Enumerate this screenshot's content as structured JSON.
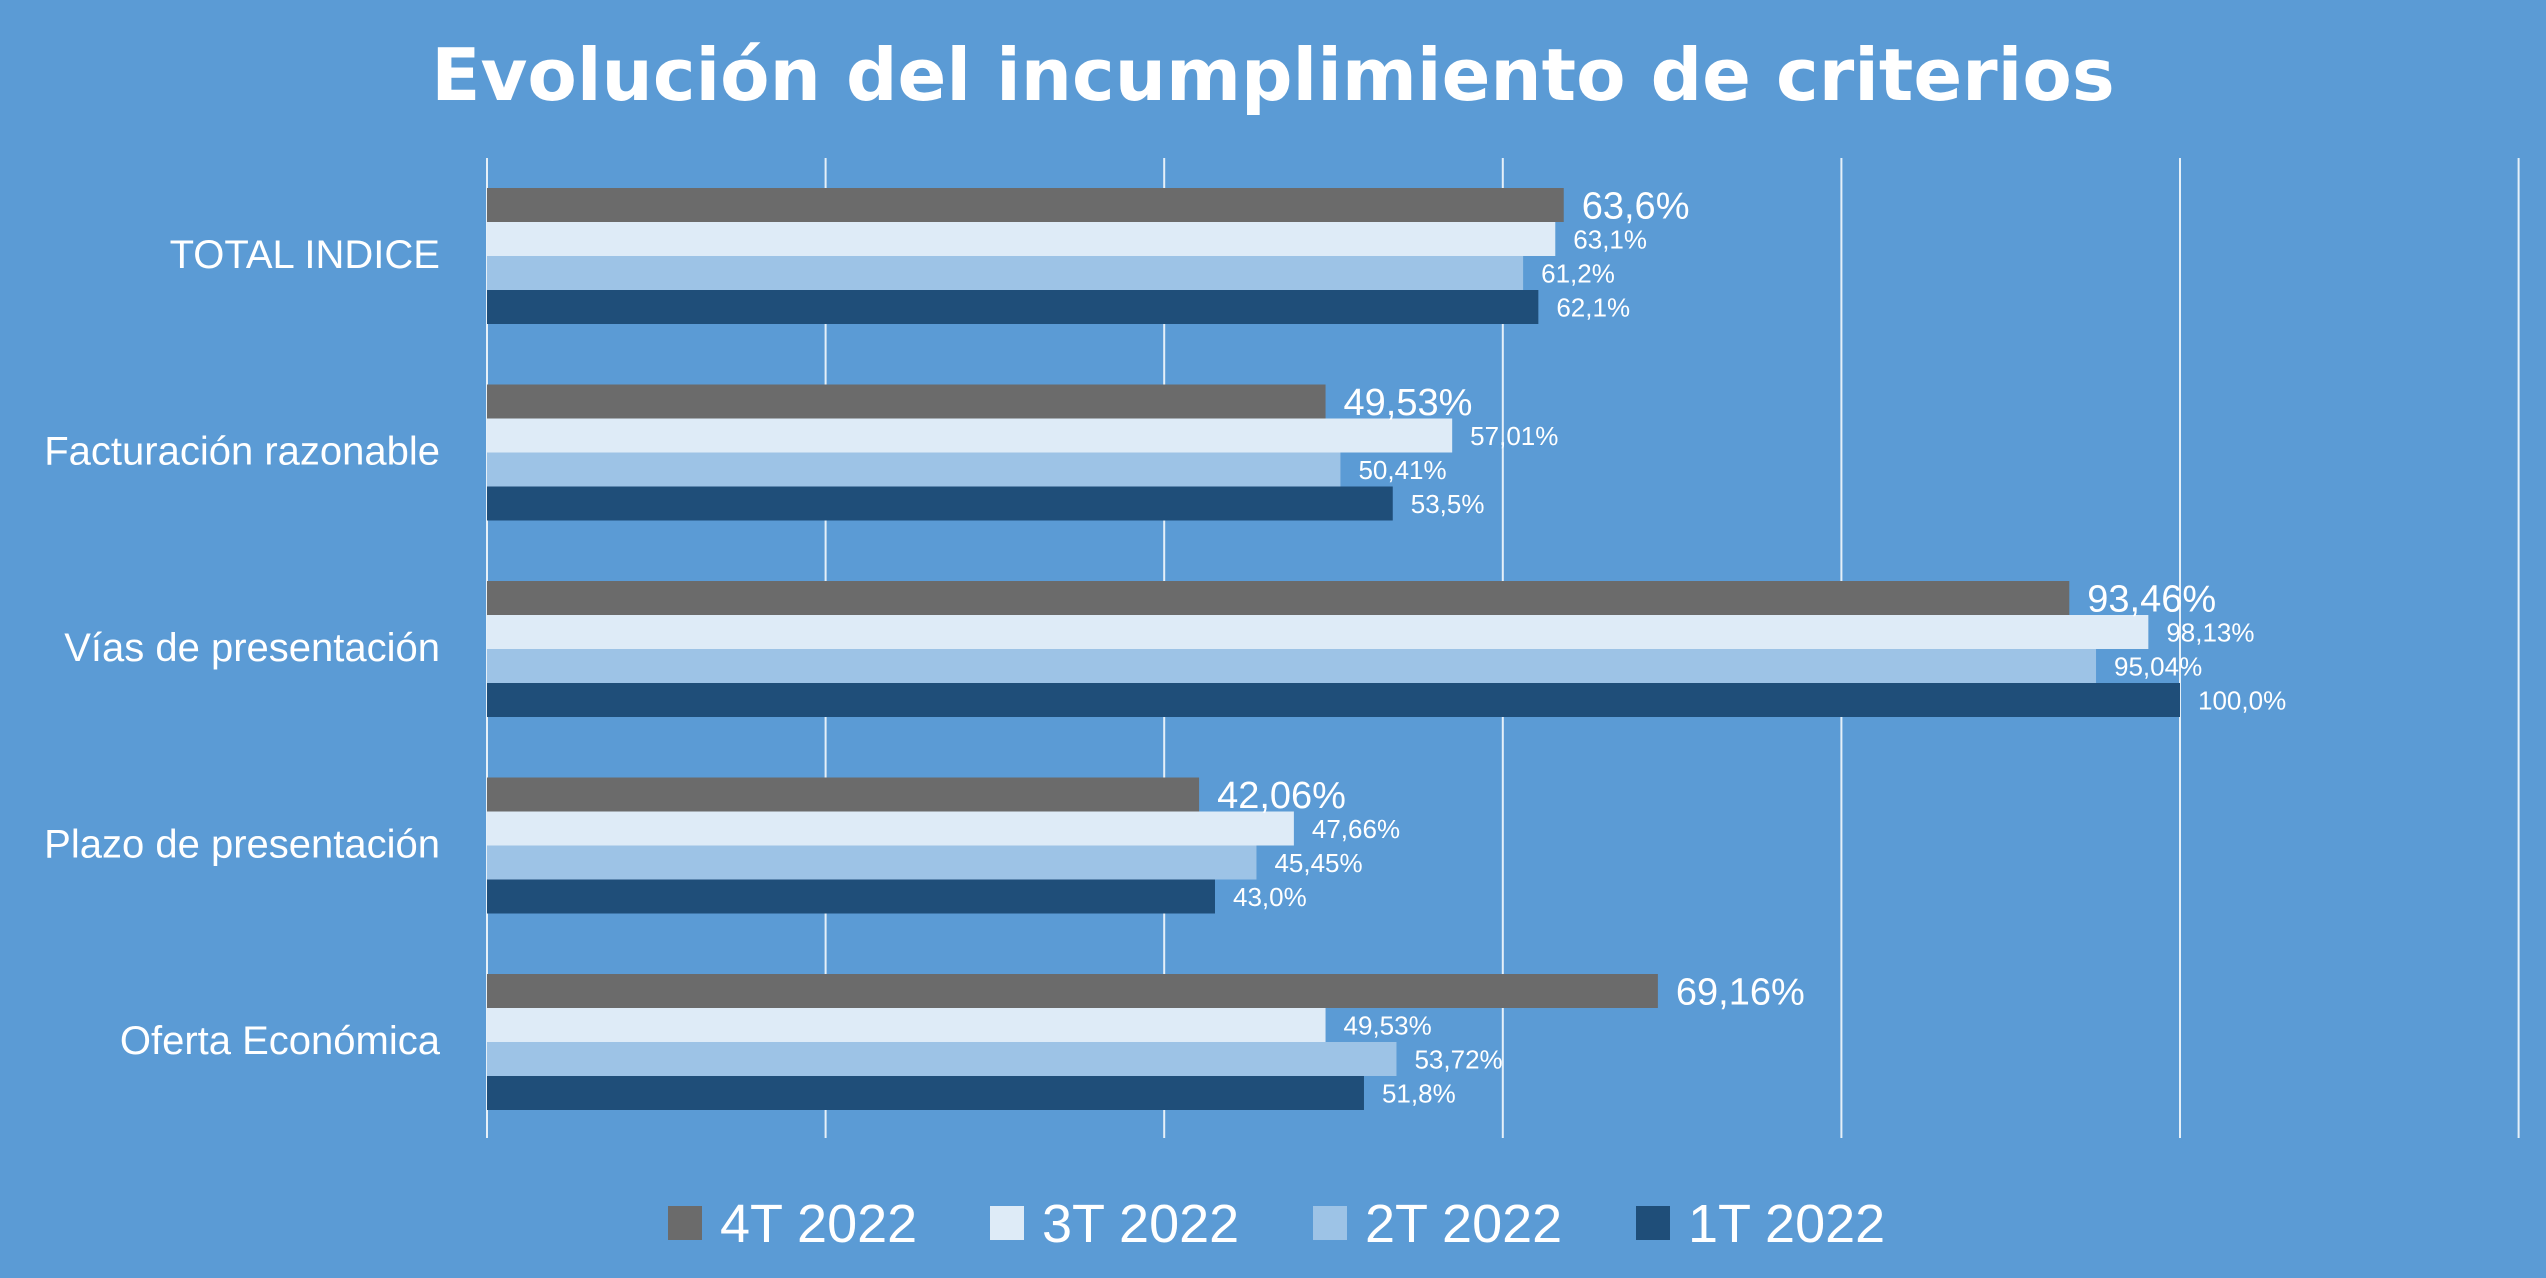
{
  "chart_data": {
    "type": "bar",
    "orientation": "horizontal",
    "title": "Evolución del incumplimiento de criterios",
    "categories": [
      "TOTAL INDICE",
      "Facturación razonable",
      "Vías de presentación",
      "Plazo de presentación",
      "Oferta Económica"
    ],
    "series": [
      {
        "name": "4T 2022",
        "color": "#6b6b6b",
        "values": [
          63.6,
          49.53,
          93.46,
          42.06,
          69.16
        ],
        "labels": [
          "63,6%",
          "49,53%",
          "93,46%",
          "42,06%",
          "69,16%"
        ]
      },
      {
        "name": "3T 2022",
        "color": "#deebf7",
        "values": [
          63.1,
          57.01,
          98.13,
          47.66,
          49.53
        ],
        "labels": [
          "63,1%",
          "57,01%",
          "98,13%",
          "47,66%",
          "49,53%"
        ]
      },
      {
        "name": "2T 2022",
        "color": "#9dc3e6",
        "values": [
          61.2,
          50.41,
          95.04,
          45.45,
          53.72
        ],
        "labels": [
          "61,2%",
          "50,41%",
          "95,04%",
          "45,45%",
          "53,72%"
        ]
      },
      {
        "name": "1T 2022",
        "color": "#1f4e79",
        "values": [
          62.1,
          53.5,
          100.0,
          43.0,
          51.8
        ],
        "labels": [
          "62,1%",
          "53,5%",
          "100,0%",
          "43,0%",
          "51,8%"
        ]
      }
    ],
    "xlim": [
      0,
      120
    ],
    "grid": "vertical",
    "legend": "bottom",
    "background_color": "#5b9bd5",
    "gridline_color": "#ffffff",
    "text_color": "#ffffff"
  }
}
